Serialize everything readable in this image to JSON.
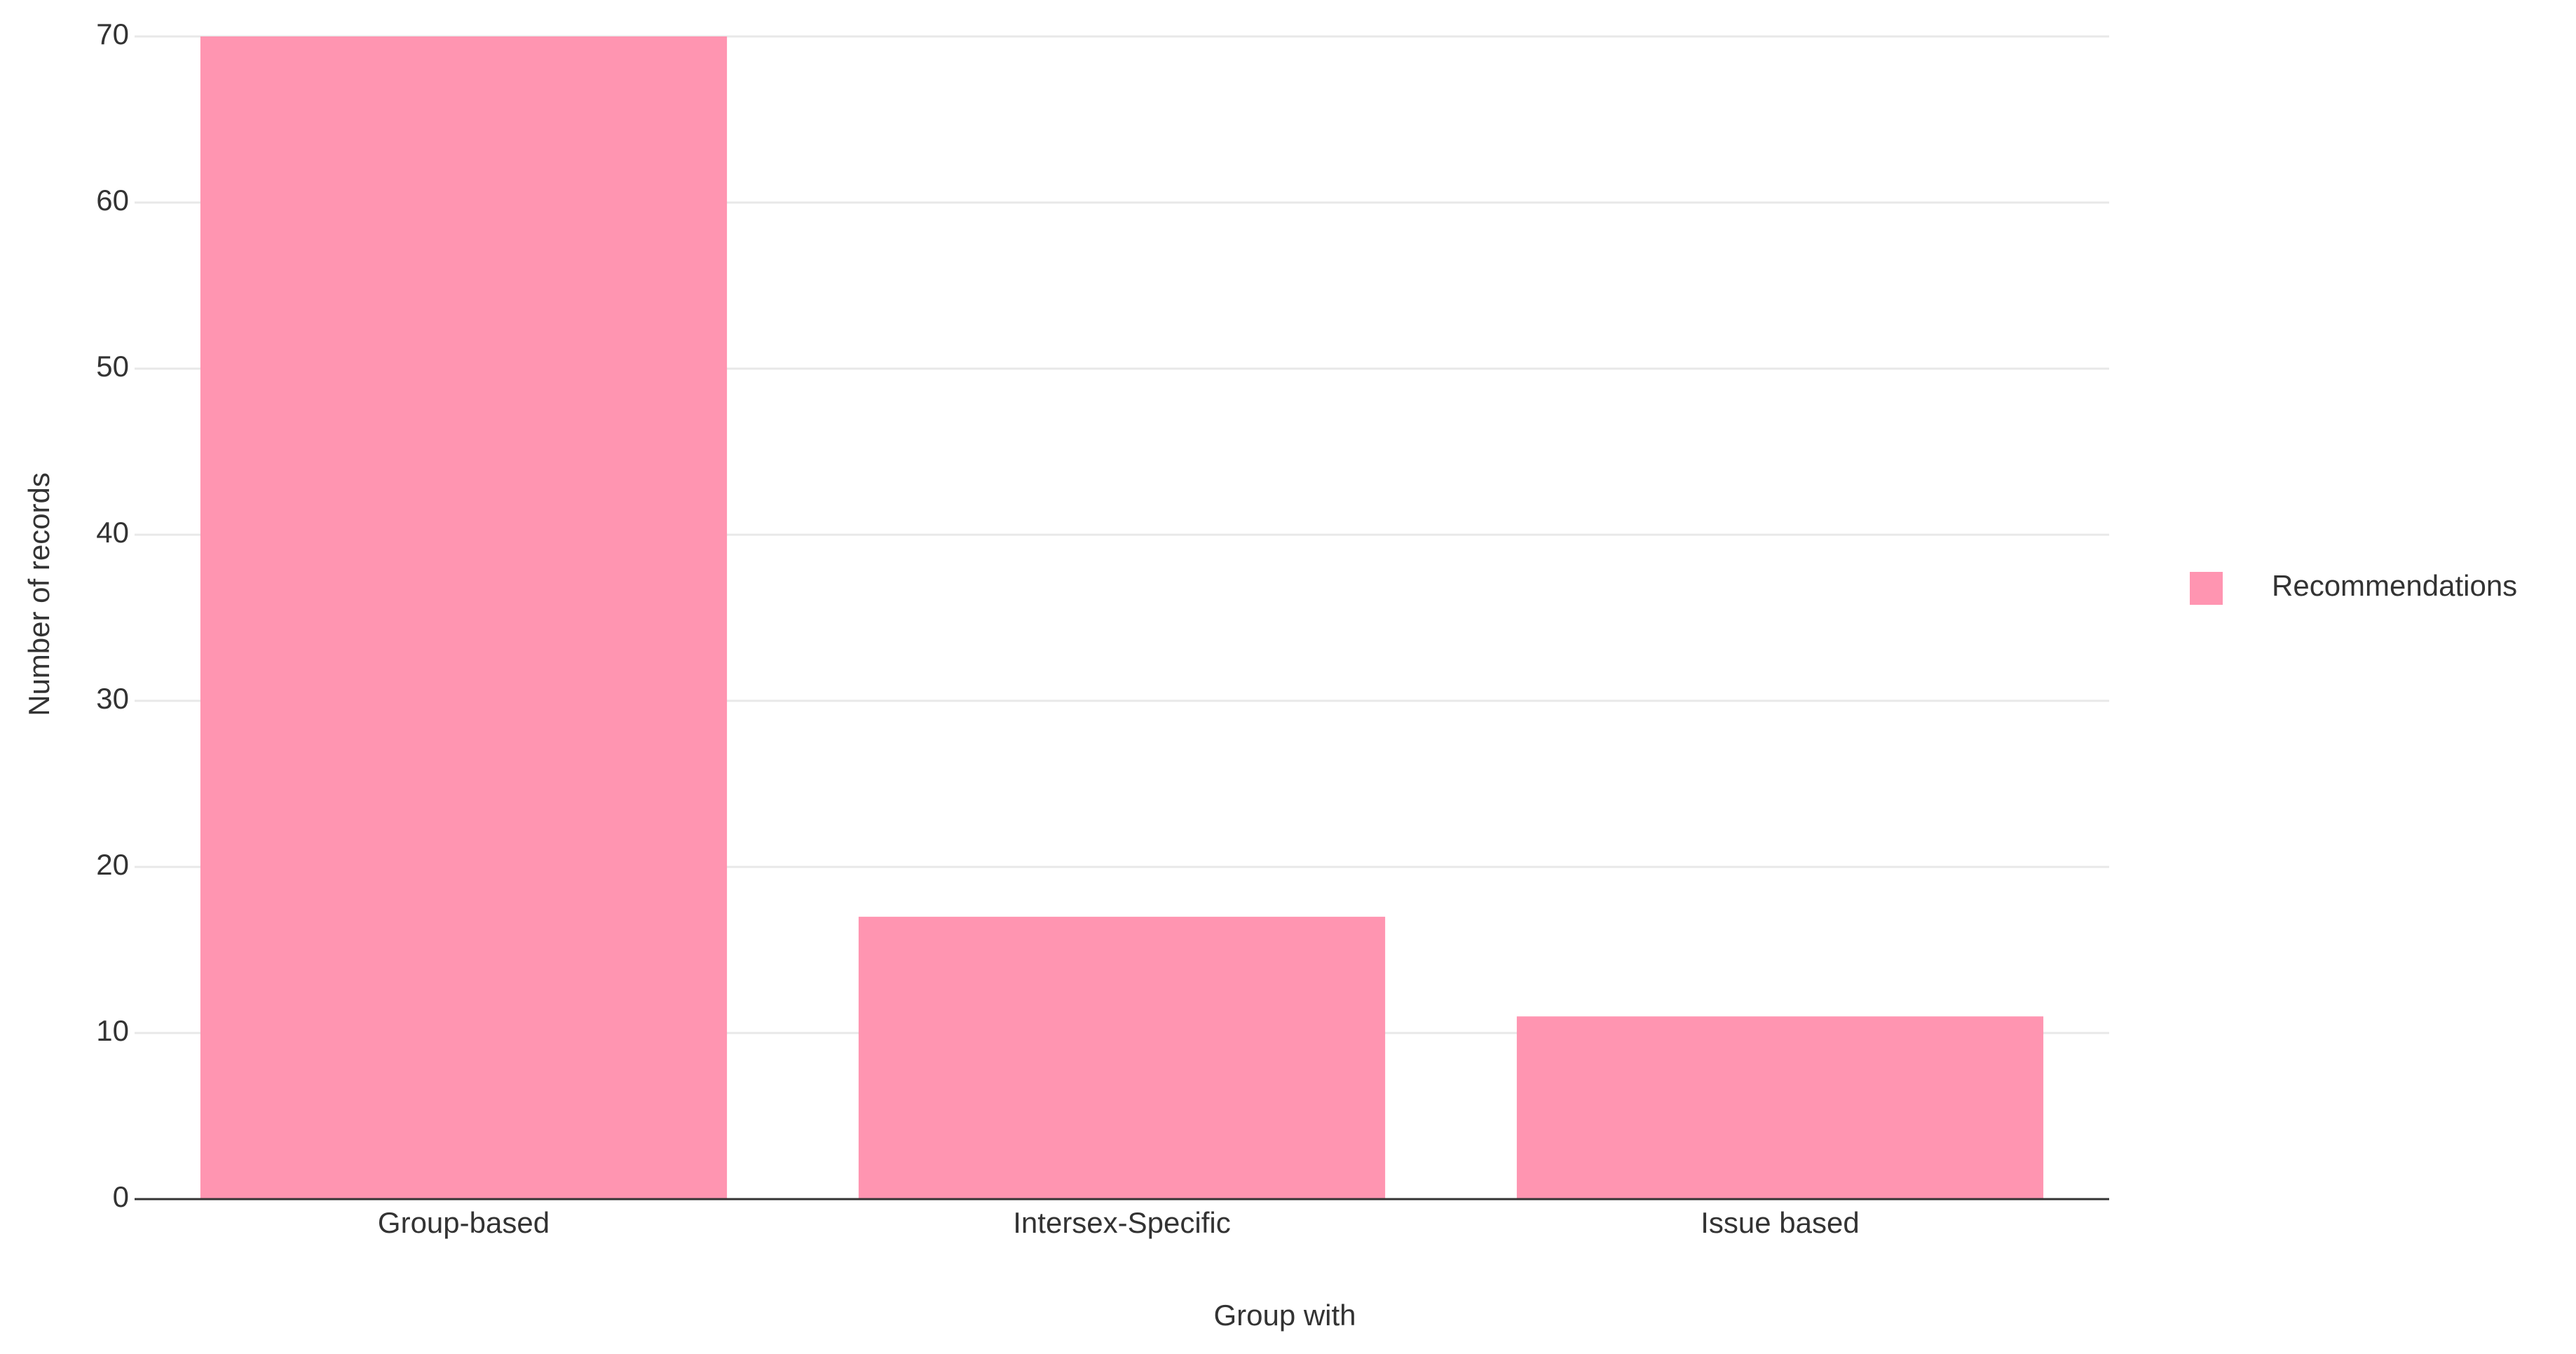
{
  "chart_data": {
    "type": "bar",
    "x_label": "Group with",
    "y_label": "Number of records",
    "categories": [
      "Group-based",
      "Intersex-Specific",
      "Issue based"
    ],
    "series": [
      {
        "name": "Recommendations",
        "color": "#ff95b1",
        "values": [
          70,
          17,
          11
        ]
      }
    ],
    "ylim": [
      0,
      70
    ],
    "yticks": [
      0,
      10,
      20,
      30,
      40,
      50,
      60,
      70
    ],
    "grid": true,
    "legend": "right"
  }
}
